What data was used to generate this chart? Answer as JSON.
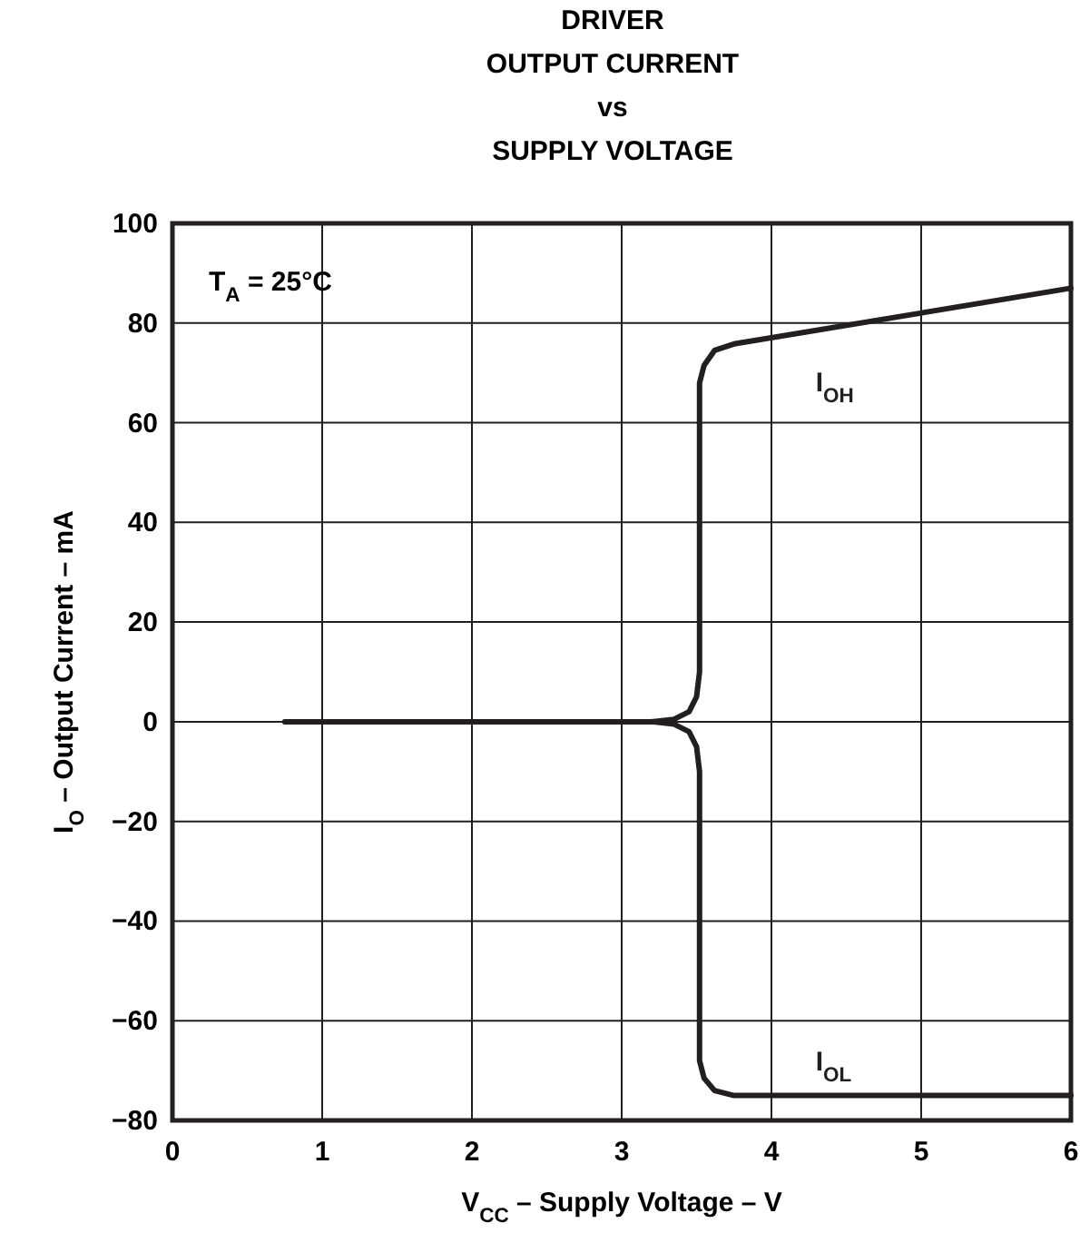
{
  "chart_data": {
    "type": "line",
    "title": "DRIVER\nOUTPUT CURRENT\nvs\nSUPPLY VOLTAGE",
    "xlabel": "V$_{CC}$ – Supply Voltage – V",
    "ylabel": "I$_{O}$  – Output Current – mA",
    "annotations": [
      "T$_{A}$ = 25°C"
    ],
    "series": [
      {
        "name": "I$_{OH}$",
        "color": "#231f20",
        "x": [
          0.75,
          3.2,
          3.35,
          3.45,
          3.5,
          3.52,
          3.52,
          3.55,
          3.62,
          3.75,
          6
        ],
        "values": [
          0,
          0,
          0.5,
          2,
          5,
          10,
          68,
          71.5,
          74.5,
          75.8,
          87
        ]
      },
      {
        "name": "I$_{OL}$",
        "color": "#231f20",
        "x": [
          3.2,
          3.35,
          3.45,
          3.5,
          3.52,
          3.52,
          3.55,
          3.62,
          3.75,
          6
        ],
        "values": [
          0,
          -0.5,
          -2,
          -5,
          -10,
          -68,
          -71.5,
          -74,
          -75,
          -75
        ]
      }
    ],
    "xlim": [
      0,
      6
    ],
    "xticks": [
      0,
      1,
      2,
      3,
      4,
      5,
      6
    ],
    "ylim": [
      -80,
      100
    ],
    "yticks": [
      {
        "value": -80,
        "label": "−80"
      },
      {
        "value": -60,
        "label": "−60"
      },
      {
        "value": -40,
        "label": "−40"
      },
      {
        "value": -20,
        "label": "−20"
      },
      0,
      20,
      40,
      60,
      80,
      100
    ],
    "grid": true,
    "line_style": "solid",
    "marker": "none"
  }
}
